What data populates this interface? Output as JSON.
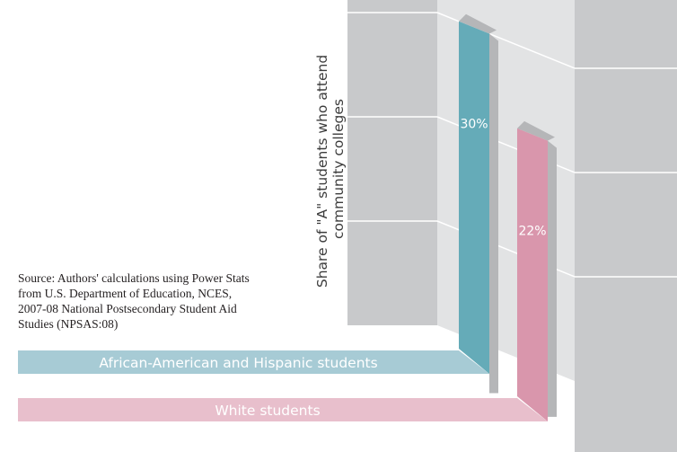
{
  "chart_data": {
    "type": "bar",
    "style": "3d-perspective",
    "ylabel": "Share of \"A\" students who attend community colleges",
    "ylim": [
      0,
      40
    ],
    "ygrid_step": 10,
    "series": [
      {
        "name": "African-American and Hispanic students",
        "value": 30,
        "label": "30%",
        "color": "#65abb8",
        "legend_color": "#a7cbd5"
      },
      {
        "name": "White students",
        "value": 22,
        "label": "22%",
        "color": "#d996ac",
        "legend_color": "#e8bfcc"
      }
    ]
  },
  "source_lines": [
    "Source: Authors' calculations using Power Stats",
    "from U.S. Department of Education, NCES,",
    "2007-08 National Postsecondary Student Aid",
    "Studies (NPSAS:08)"
  ],
  "colors": {
    "panel_front": "#c8c9cb",
    "panel_side": "#e2e3e4",
    "bar_shadow": "#b5b6b8",
    "grid_line": "#ffffff"
  }
}
